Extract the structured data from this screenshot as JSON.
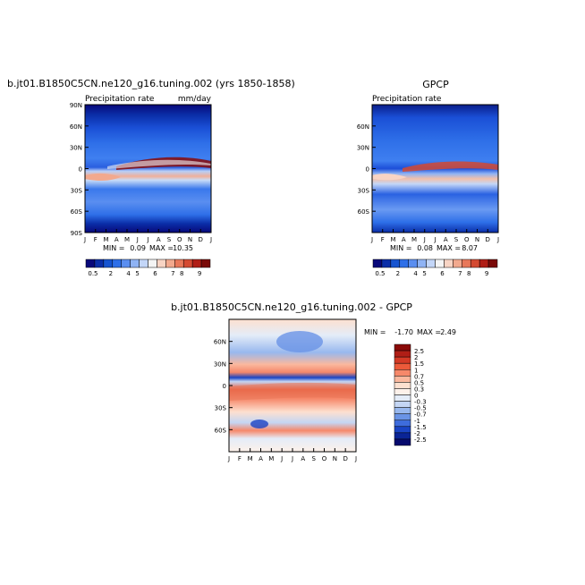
{
  "chart_data": [
    {
      "type": "heatmap",
      "title": "b.jt01.B1850C5CN.ne120_g16.tuning.002 (yrs 1850-1858)",
      "subtitle_left": "Precipitation rate",
      "subtitle_right": "mm/day",
      "min_label": "MIN =",
      "min_value": "0.09",
      "max_label": "MAX =",
      "max_value": "10.35",
      "x_ticks": [
        "J",
        "F",
        "M",
        "A",
        "M",
        "J",
        "J",
        "A",
        "S",
        "O",
        "N",
        "D",
        "J"
      ],
      "y_ticks": [
        "90N",
        "60N",
        "30N",
        "0",
        "30S",
        "60S",
        "90S"
      ],
      "ylim": [
        -90,
        90
      ],
      "colorbar_labels": [
        "0.5",
        "2",
        "4",
        "5",
        "6",
        "7",
        "8",
        "9"
      ],
      "colorbar_colors": [
        "#08087a",
        "#0a2ea8",
        "#1654d0",
        "#2e6fe8",
        "#5a8ef0",
        "#8fb3f4",
        "#c3d6f8",
        "#f4f4f4",
        "#f8d4c4",
        "#f2a98e",
        "#e8785a",
        "#d44a32",
        "#b01e16",
        "#7a0a08"
      ]
    },
    {
      "type": "heatmap",
      "title": "GPCP",
      "subtitle_left": "Precipitation rate",
      "min_label": "MIN =",
      "min_value": "0.08",
      "max_label": "MAX =",
      "max_value": "8.07",
      "x_ticks": [
        "J",
        "F",
        "M",
        "A",
        "M",
        "J",
        "J",
        "A",
        "S",
        "O",
        "N",
        "D",
        "J"
      ],
      "y_ticks": [
        "60N",
        "30N",
        "0",
        "30S",
        "60S"
      ],
      "ylim": [
        -60,
        60
      ],
      "colorbar_labels": [
        "0.5",
        "2",
        "4",
        "5",
        "6",
        "7",
        "8",
        "9"
      ],
      "colorbar_colors": [
        "#08087a",
        "#0a2ea8",
        "#1654d0",
        "#2e6fe8",
        "#5a8ef0",
        "#8fb3f4",
        "#c3d6f8",
        "#f4f4f4",
        "#f8d4c4",
        "#f2a98e",
        "#e8785a",
        "#d44a32",
        "#b01e16",
        "#7a0a08"
      ]
    },
    {
      "type": "heatmap",
      "title": "b.jt01.B1850C5CN.ne120_g16.tuning.002 - GPCP",
      "min_label": "MIN =",
      "min_value": "-1.70",
      "max_label": "MAX =",
      "max_value": "2.49",
      "x_ticks": [
        "J",
        "F",
        "M",
        "A",
        "M",
        "J",
        "J",
        "A",
        "S",
        "O",
        "N",
        "D",
        "J"
      ],
      "y_ticks": [
        "60N",
        "30N",
        "0",
        "30S",
        "60S"
      ],
      "ylim": [
        -60,
        60
      ],
      "colorbar_labels": [
        "2.5",
        "2",
        "1.5",
        "1",
        "0.7",
        "0.5",
        "0.3",
        "0",
        "-0.3",
        "-0.5",
        "-0.7",
        "-1",
        "-1.5",
        "-2",
        "-2.5"
      ],
      "colorbar_colors": [
        "#8a0a08",
        "#b01e16",
        "#d43a26",
        "#ec5a3a",
        "#f6886a",
        "#fab89e",
        "#fde0d0",
        "#fdf1ea",
        "#e4ecf8",
        "#c4d6f4",
        "#98b8ee",
        "#6a94e6",
        "#3e6cdc",
        "#1a44c4",
        "#0a2496",
        "#060a6e"
      ]
    }
  ]
}
